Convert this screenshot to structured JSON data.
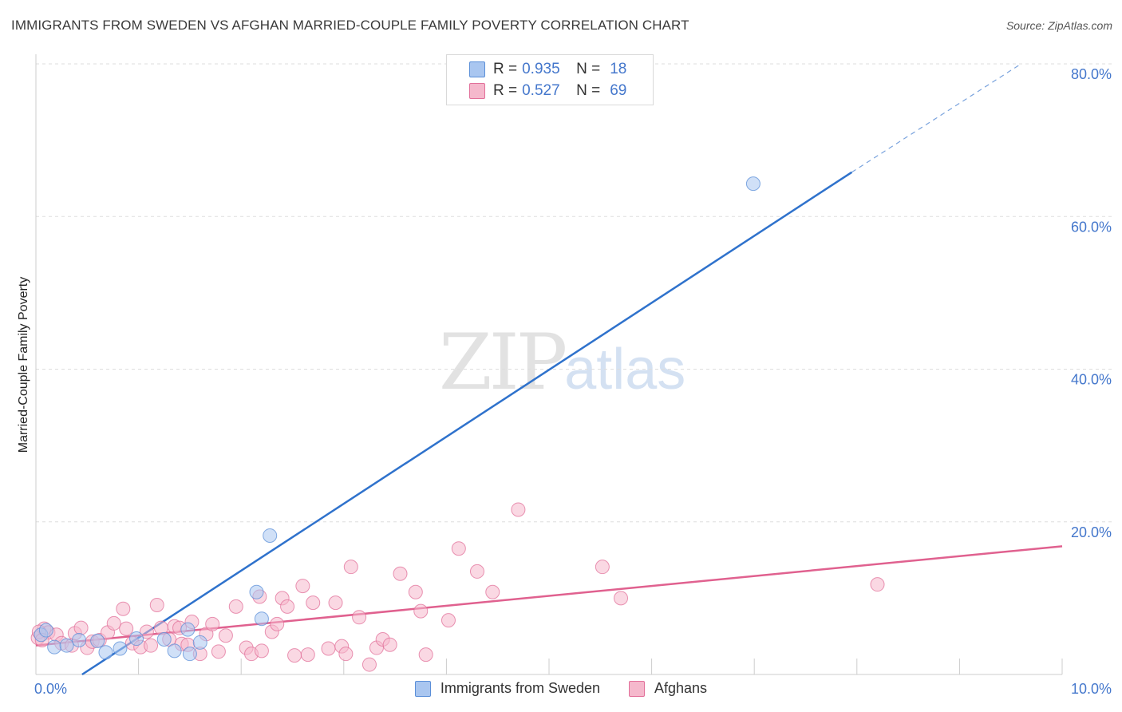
{
  "title": "IMMIGRANTS FROM SWEDEN VS AFGHAN MARRIED-COUPLE FAMILY POVERTY CORRELATION CHART",
  "source": "Source: ZipAtlas.com",
  "watermark": {
    "zip": "ZIP",
    "atlas": "atlas"
  },
  "colors": {
    "blue": "#5b8fd8",
    "blue_fill": "#a9c6f0",
    "pink": "#e2709a",
    "pink_fill": "#f5b8cc",
    "value_text": "#4477cc",
    "grid": "#dddddd"
  },
  "legend": {
    "rows": [
      {
        "r_label": "R =",
        "r_value": "0.935",
        "n_label": "N =",
        "n_value": "18"
      },
      {
        "r_label": "R =",
        "r_value": "0.527",
        "n_label": "N =",
        "n_value": "69"
      }
    ]
  },
  "bottom_legend": [
    "Immigrants from Sweden",
    "Afghans"
  ],
  "chart_data": {
    "type": "scatter",
    "title": "IMMIGRANTS FROM SWEDEN VS AFGHAN MARRIED-COUPLE FAMILY POVERTY CORRELATION CHART",
    "xlabel": "",
    "ylabel": "Married-Couple Family Poverty",
    "xlim": [
      0,
      10
    ],
    "ylim": [
      0,
      80
    ],
    "x_tick_labels": [
      "0.0%",
      "10.0%"
    ],
    "y_tick_labels": [
      "20.0%",
      "40.0%",
      "60.0%",
      "80.0%"
    ],
    "y_ticks": [
      20,
      40,
      60,
      80
    ],
    "grid": true,
    "series": [
      {
        "name": "Immigrants from Sweden",
        "r": 0.935,
        "n": 18,
        "points": [
          [
            0.05,
            5.2
          ],
          [
            0.1,
            5.8
          ],
          [
            0.18,
            3.6
          ],
          [
            0.3,
            3.8
          ],
          [
            0.42,
            4.5
          ],
          [
            0.6,
            4.4
          ],
          [
            0.68,
            2.9
          ],
          [
            0.82,
            3.4
          ],
          [
            0.98,
            4.7
          ],
          [
            1.25,
            4.6
          ],
          [
            1.35,
            3.1
          ],
          [
            1.5,
            2.7
          ],
          [
            1.6,
            4.2
          ],
          [
            1.48,
            5.9
          ],
          [
            2.15,
            10.8
          ],
          [
            2.2,
            7.3
          ],
          [
            2.28,
            18.2
          ],
          [
            6.99,
            64.3
          ]
        ],
        "trend": {
          "x0": 0.45,
          "y0": 0.0,
          "x1": 7.95,
          "y1": 65.8,
          "dash_x1": 9.6,
          "dash_y1": 80.0
        }
      },
      {
        "name": "Afghans",
        "r": 0.527,
        "n": 69,
        "points": [
          [
            0.02,
            4.8
          ],
          [
            0.08,
            6.0
          ],
          [
            0.12,
            5.5
          ],
          [
            0.2,
            5.2
          ],
          [
            0.25,
            4.1
          ],
          [
            0.35,
            3.8
          ],
          [
            0.38,
            5.4
          ],
          [
            0.44,
            6.1
          ],
          [
            0.5,
            3.5
          ],
          [
            0.55,
            4.3
          ],
          [
            0.62,
            4.5
          ],
          [
            0.7,
            5.5
          ],
          [
            0.76,
            6.7
          ],
          [
            0.85,
            8.6
          ],
          [
            0.88,
            6.0
          ],
          [
            0.94,
            4.1
          ],
          [
            1.02,
            3.6
          ],
          [
            1.08,
            5.6
          ],
          [
            1.12,
            3.8
          ],
          [
            1.18,
            9.1
          ],
          [
            1.22,
            6.1
          ],
          [
            1.3,
            4.6
          ],
          [
            1.35,
            6.3
          ],
          [
            1.42,
            4.0
          ],
          [
            1.48,
            3.9
          ],
          [
            1.52,
            6.9
          ],
          [
            1.6,
            2.7
          ],
          [
            1.66,
            5.3
          ],
          [
            1.72,
            6.6
          ],
          [
            1.78,
            3.0
          ],
          [
            1.85,
            5.1
          ],
          [
            1.95,
            8.9
          ],
          [
            2.05,
            3.5
          ],
          [
            2.1,
            2.7
          ],
          [
            2.18,
            10.2
          ],
          [
            2.2,
            3.1
          ],
          [
            2.3,
            5.6
          ],
          [
            2.35,
            6.6
          ],
          [
            2.4,
            10.0
          ],
          [
            2.45,
            8.9
          ],
          [
            2.52,
            2.5
          ],
          [
            2.6,
            11.6
          ],
          [
            2.65,
            2.6
          ],
          [
            2.7,
            9.4
          ],
          [
            2.85,
            3.4
          ],
          [
            2.92,
            9.4
          ],
          [
            2.98,
            3.7
          ],
          [
            3.02,
            2.7
          ],
          [
            3.07,
            14.1
          ],
          [
            3.15,
            7.5
          ],
          [
            3.25,
            1.3
          ],
          [
            3.32,
            3.5
          ],
          [
            3.38,
            4.6
          ],
          [
            3.45,
            3.9
          ],
          [
            3.55,
            13.2
          ],
          [
            3.7,
            10.8
          ],
          [
            3.75,
            8.3
          ],
          [
            3.8,
            2.6
          ],
          [
            4.02,
            7.1
          ],
          [
            4.12,
            16.5
          ],
          [
            4.3,
            13.5
          ],
          [
            4.45,
            10.8
          ],
          [
            4.7,
            21.6
          ],
          [
            5.52,
            14.1
          ],
          [
            5.7,
            10.0
          ],
          [
            8.2,
            11.8
          ],
          [
            0.03,
            5.6
          ],
          [
            0.06,
            4.5
          ],
          [
            1.4,
            6.1
          ]
        ],
        "trend": {
          "x0": 0.0,
          "y0": 3.8,
          "x1": 10.0,
          "y1": 16.8
        }
      }
    ]
  }
}
